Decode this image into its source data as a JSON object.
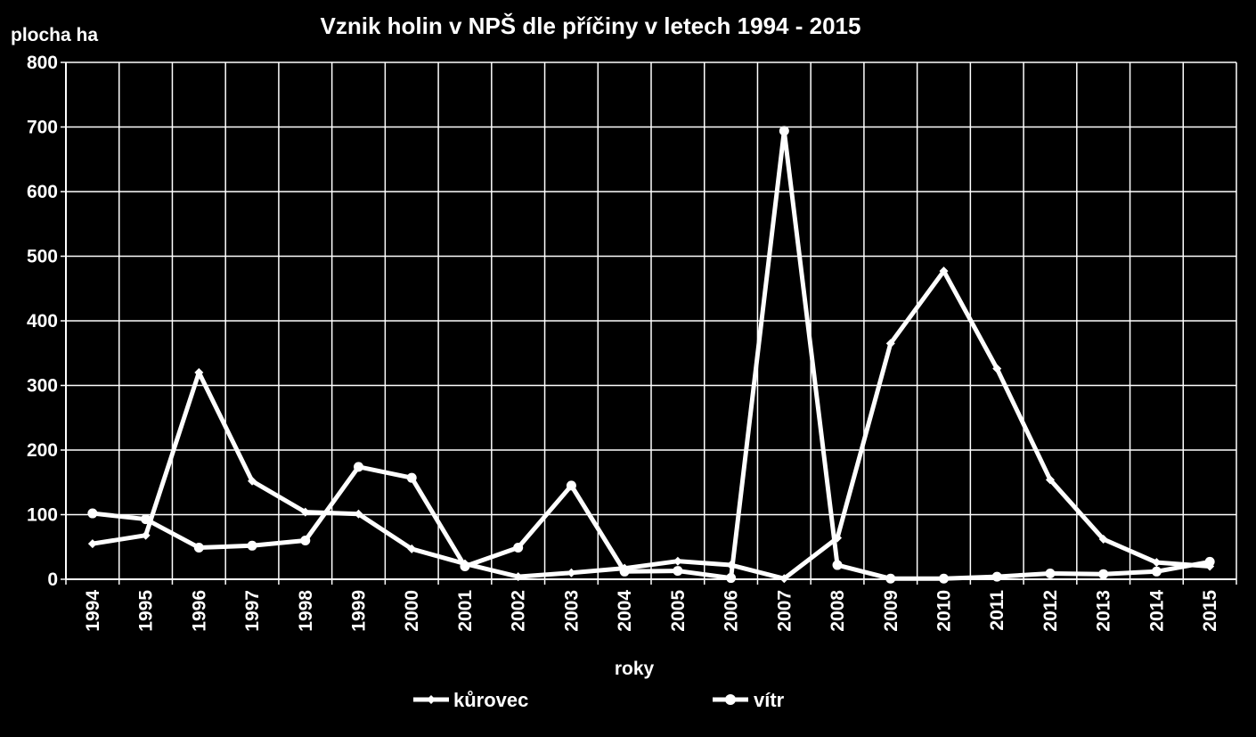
{
  "chart_data": {
    "type": "line",
    "title": "Vznik holin v NPŠ dle příčiny v letech 1994 -  2015",
    "ylabel": "plocha ha",
    "xlabel": "roky",
    "ylim": [
      0,
      800
    ],
    "yticks": [
      0,
      100,
      200,
      300,
      400,
      500,
      600,
      700,
      800
    ],
    "grid": true,
    "legend_position": "bottom",
    "categories": [
      "1994",
      "1995",
      "1996",
      "1997",
      "1998",
      "1999",
      "2000",
      "2001",
      "2002",
      "2003",
      "2004",
      "2005",
      "2006",
      "2007",
      "2008",
      "2009",
      "2010",
      "2011",
      "2012",
      "2013",
      "2014",
      "2015"
    ],
    "series": [
      {
        "name": "kůrovec",
        "marker": "diamond",
        "color": "#ffffff",
        "values": [
          55,
          68,
          320,
          152,
          104,
          101,
          47,
          24,
          4,
          10,
          17,
          28,
          22,
          1,
          64,
          365,
          477,
          326,
          154,
          62,
          26,
          20
        ]
      },
      {
        "name": "vítr",
        "marker": "circle",
        "color": "#ffffff",
        "values": [
          102,
          93,
          49,
          52,
          60,
          174,
          157,
          20,
          49,
          145,
          12,
          13,
          2,
          694,
          22,
          1,
          1,
          4,
          9,
          8,
          12,
          27
        ]
      }
    ]
  }
}
